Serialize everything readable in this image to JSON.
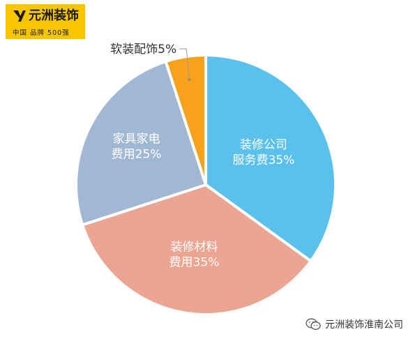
{
  "logo": {
    "name": "元洲装饰",
    "tagline": "中国 品牌 500强",
    "bg_color": "#f7c600"
  },
  "chart_data": {
    "type": "pie",
    "title": "",
    "slices": [
      {
        "label_lines": [
          "装修公司",
          "服务费35%"
        ],
        "value": 35,
        "color": "#5ac0ec"
      },
      {
        "label_lines": [
          "装修材料",
          "费用35%"
        ],
        "value": 35,
        "color": "#eca592"
      },
      {
        "label_lines": [
          "家具家电",
          "费用25%"
        ],
        "value": 25,
        "color": "#a1b8d4"
      },
      {
        "label_lines": [
          "软装配饰5%"
        ],
        "value": 5,
        "color": "#f8a21c"
      }
    ]
  },
  "watermark": {
    "text": "元洲装饰淮南公司",
    "icon": "wechat-icon"
  }
}
